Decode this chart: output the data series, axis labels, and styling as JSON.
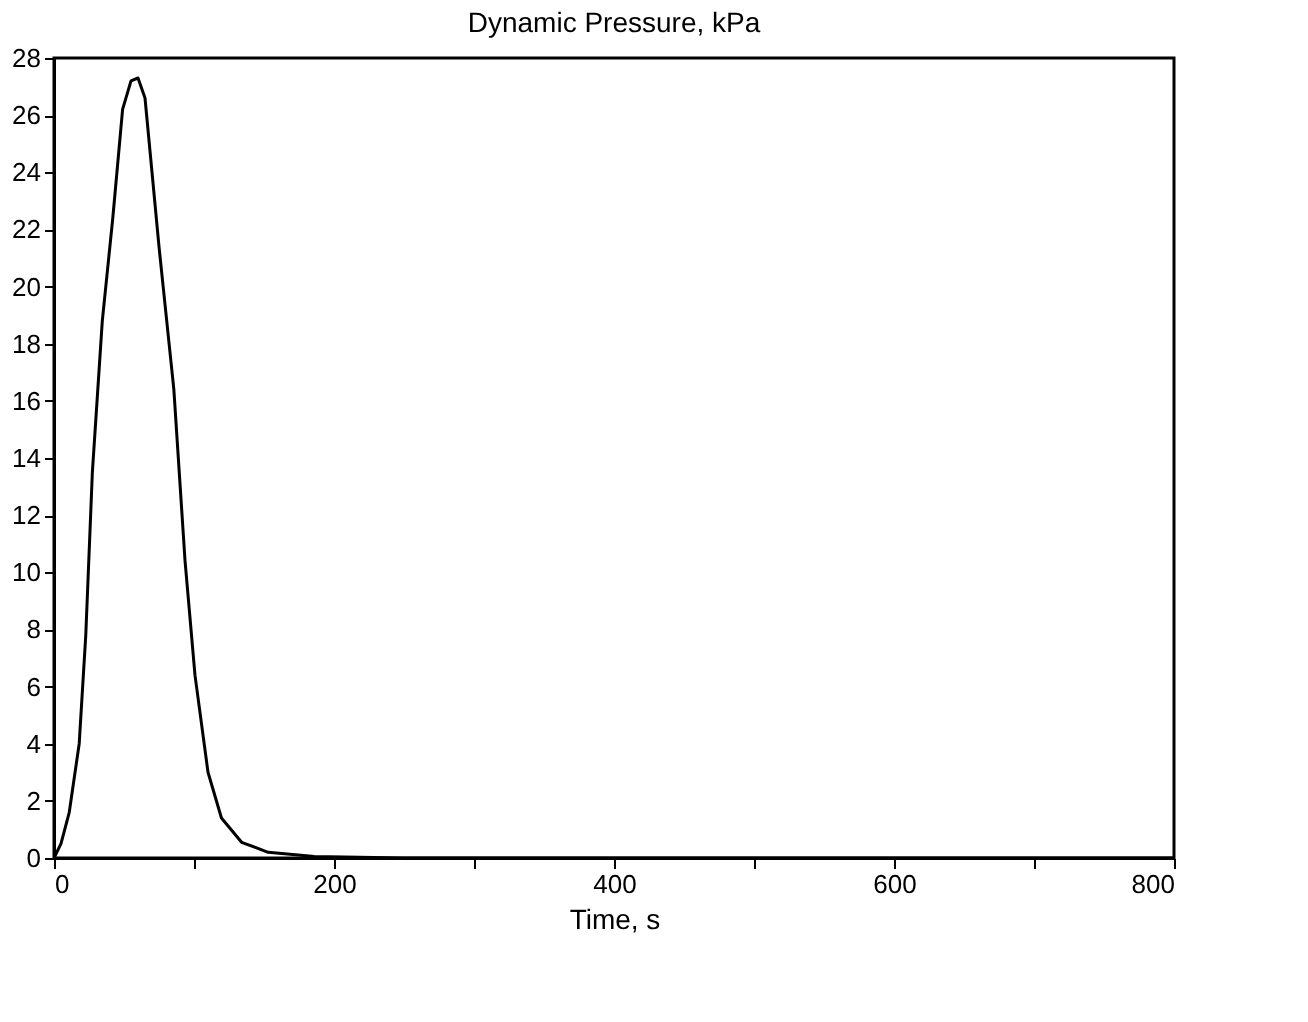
{
  "chart_data": {
    "type": "line",
    "title": "Dynamic Pressure, kPa",
    "xlabel": "Time, s",
    "x": [
      0,
      5,
      10.9,
      18,
      22.7,
      27.4,
      34.5,
      42,
      49,
      55,
      60,
      65,
      75,
      85.6,
      93.6,
      100.7,
      110,
      119.6,
      134,
      153,
      186,
      250,
      400,
      600,
      800
    ],
    "series": [
      {
        "color": "#000000",
        "values": [
          0,
          0.5,
          1.6,
          4.0,
          7.8,
          13.5,
          18.8,
          22.4,
          26.2,
          27.2,
          27.3,
          26.6,
          21.4,
          16.4,
          10.4,
          6.4,
          3.0,
          1.4,
          0.55,
          0.2,
          0.05,
          0,
          0,
          0,
          0
        ]
      }
    ],
    "xlim": [
      0,
      800
    ],
    "xticks": [
      0,
      {
        "value": 100,
        "label": null
      },
      200,
      {
        "value": 300,
        "label": null
      },
      400,
      {
        "value": 500,
        "label": null
      },
      600,
      {
        "value": 700,
        "label": null
      },
      800
    ],
    "ylim": [
      0,
      28
    ],
    "yticks": [
      0,
      2,
      4,
      6,
      8,
      10,
      12,
      14,
      16,
      18,
      20,
      22,
      24,
      26,
      28
    ],
    "grid": false,
    "marker": "none",
    "line_style": "solid"
  }
}
